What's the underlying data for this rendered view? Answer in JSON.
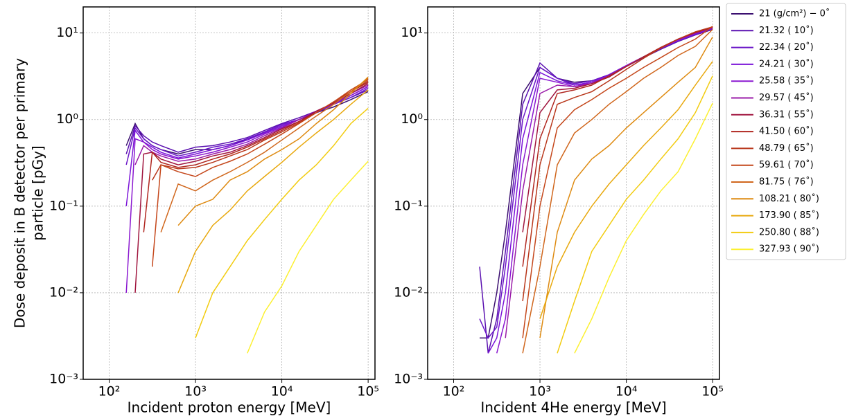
{
  "chart_data": {
    "type": "line",
    "ylabel": [
      "Dose deposit in B detector per primary",
      "particle [pGy]"
    ],
    "xscale": "log",
    "yscale": "log",
    "grid": true,
    "legend": "outside upper right",
    "ylim": [
      0.001,
      20
    ],
    "yticks": [
      {
        "value": 0.001,
        "label": "10⁻³"
      },
      {
        "value": 0.01,
        "label": "10⁻²"
      },
      {
        "value": 0.1,
        "label": "10⁻¹"
      },
      {
        "value": 1,
        "label": "10⁰"
      },
      {
        "value": 10,
        "label": "10¹"
      }
    ],
    "xlim": [
      50,
      120000
    ],
    "xticks": [
      {
        "value": 100,
        "label": "10²"
      },
      {
        "value": 1000,
        "label": "10³"
      },
      {
        "value": 10000,
        "label": "10⁴"
      },
      {
        "value": 100000,
        "label": "10⁵"
      }
    ],
    "series": [
      {
        "name": "21 (g/cm²) − 0˚",
        "color": "#3b0f70"
      },
      {
        "name": "21.32 ( 10˚)",
        "color": "#5a10b0"
      },
      {
        "name": "22.34 ( 20˚)",
        "color": "#6a15c8"
      },
      {
        "name": "24.21 ( 30˚)",
        "color": "#7b14d8"
      },
      {
        "name": "25.58 ( 35˚)",
        "color": "#8a17d0"
      },
      {
        "name": "29.57 ( 45˚)",
        "color": "#9a1aa8"
      },
      {
        "name": "36.31 ( 55˚)",
        "color": "#a0153e"
      },
      {
        "name": "41.50 ( 60˚)",
        "color": "#b0261f"
      },
      {
        "name": "48.79 ( 65˚)",
        "color": "#b8361a"
      },
      {
        "name": "59.61 ( 70˚)",
        "color": "#c4461a"
      },
      {
        "name": "81.75 ( 76˚)",
        "color": "#d0661c"
      },
      {
        "name": "108.21 ( 80˚)",
        "color": "#de8a10"
      },
      {
        "name": "173.90 ( 85˚)",
        "color": "#e8a80c"
      },
      {
        "name": "250.80 ( 88˚)",
        "color": "#f2cc10"
      },
      {
        "name": "327.93 ( 90˚)",
        "color": "#fcf030"
      }
    ],
    "panels": [
      {
        "xlabel": "Incident proton energy [MeV]",
        "x": [
          63,
          100,
          158,
          200,
          251,
          316,
          398,
          631,
          1000,
          1585,
          2512,
          3981,
          6310,
          10000,
          15849,
          25119,
          39811,
          63096,
          100000
        ],
        "series": [
          {
            "values": [
              null,
              null,
              0.5,
              0.9,
              0.6,
              0.5,
              0.45,
              0.4,
              0.45,
              0.45,
              0.5,
              0.6,
              0.7,
              0.85,
              1.0,
              1.2,
              1.4,
              1.7,
              2.1
            ]
          },
          {
            "values": [
              null,
              null,
              0.4,
              0.85,
              0.65,
              0.55,
              0.5,
              0.42,
              0.48,
              0.5,
              0.55,
              0.62,
              0.75,
              0.9,
              1.05,
              1.25,
              1.5,
              1.8,
              2.2
            ]
          },
          {
            "values": [
              null,
              null,
              0.3,
              0.8,
              0.6,
              0.5,
              0.45,
              0.38,
              0.42,
              0.48,
              0.52,
              0.6,
              0.72,
              0.88,
              1.0,
              1.2,
              1.5,
              1.8,
              2.3
            ]
          },
          {
            "values": [
              null,
              null,
              0.1,
              0.75,
              0.55,
              0.48,
              0.42,
              0.36,
              0.4,
              0.45,
              0.5,
              0.58,
              0.7,
              0.85,
              1.0,
              1.25,
              1.5,
              1.9,
              2.4
            ]
          },
          {
            "values": [
              null,
              null,
              0.01,
              0.6,
              0.55,
              0.45,
              0.4,
              0.35,
              0.38,
              0.42,
              0.48,
              0.55,
              0.68,
              0.82,
              1.0,
              1.25,
              1.55,
              1.9,
              2.4
            ]
          },
          {
            "values": [
              null,
              null,
              null,
              0.3,
              0.5,
              0.42,
              0.38,
              0.33,
              0.35,
              0.4,
              0.45,
              0.52,
              0.65,
              0.8,
              1.0,
              1.25,
              1.55,
              2.0,
              2.5
            ]
          },
          {
            "values": [
              null,
              null,
              null,
              0.01,
              0.4,
              0.42,
              0.35,
              0.3,
              0.33,
              0.38,
              0.42,
              0.5,
              0.62,
              0.78,
              0.95,
              1.25,
              1.55,
              2.0,
              2.6
            ]
          },
          {
            "values": [
              null,
              null,
              null,
              null,
              0.05,
              0.42,
              0.32,
              0.28,
              0.3,
              0.35,
              0.4,
              0.48,
              0.6,
              0.75,
              0.95,
              1.2,
              1.6,
              2.1,
              2.7
            ]
          },
          {
            "values": [
              null,
              null,
              null,
              null,
              null,
              0.2,
              0.3,
              0.27,
              0.28,
              0.32,
              0.38,
              0.45,
              0.58,
              0.72,
              0.92,
              1.2,
              1.6,
              2.1,
              2.8
            ]
          },
          {
            "values": [
              null,
              null,
              null,
              null,
              null,
              0.02,
              0.3,
              0.25,
              0.22,
              0.28,
              0.33,
              0.4,
              0.52,
              0.68,
              0.9,
              1.2,
              1.6,
              2.2,
              2.9
            ]
          },
          {
            "values": [
              null,
              null,
              null,
              null,
              null,
              null,
              0.05,
              0.18,
              0.15,
              0.2,
              0.25,
              0.32,
              0.42,
              0.58,
              0.8,
              1.1,
              1.5,
              2.1,
              3.0
            ]
          },
          {
            "values": [
              null,
              null,
              null,
              null,
              null,
              null,
              null,
              0.06,
              0.1,
              0.12,
              0.2,
              0.25,
              0.35,
              0.45,
              0.6,
              0.9,
              1.3,
              2.0,
              3.1
            ]
          },
          {
            "values": [
              null,
              null,
              null,
              null,
              null,
              null,
              null,
              0.01,
              0.03,
              0.06,
              0.09,
              0.15,
              0.22,
              0.32,
              0.48,
              0.7,
              1.0,
              1.5,
              2.2
            ]
          },
          {
            "values": [
              null,
              null,
              null,
              null,
              null,
              null,
              null,
              null,
              0.003,
              0.01,
              0.02,
              0.04,
              0.07,
              0.12,
              0.2,
              0.3,
              0.5,
              0.9,
              1.35
            ]
          },
          {
            "values": [
              null,
              null,
              null,
              null,
              null,
              null,
              null,
              null,
              null,
              null,
              null,
              0.002,
              0.006,
              0.012,
              0.03,
              0.06,
              0.12,
              0.2,
              0.33
            ]
          }
        ]
      },
      {
        "xlabel": "Incident 4He energy [MeV]",
        "x": [
          63,
          100,
          158,
          200,
          251,
          316,
          398,
          631,
          1000,
          1585,
          2512,
          3981,
          6310,
          10000,
          15849,
          25119,
          39811,
          63096,
          100000
        ],
        "series": [
          {
            "values": [
              null,
              null,
              null,
              0.003,
              0.003,
              0.01,
              0.05,
              2,
              4,
              3,
              2.7,
              2.8,
              3.3,
              4.2,
              5.2,
              6.5,
              8,
              9.5,
              11
            ]
          },
          {
            "values": [
              null,
              null,
              null,
              0.02,
              0.002,
              0.005,
              0.03,
              1.5,
              4.5,
              3,
              2.5,
              2.7,
              3.2,
              4.1,
              5.2,
              6.5,
              8,
              9.5,
              11
            ]
          },
          {
            "values": [
              null,
              null,
              null,
              0.005,
              0.003,
              0.004,
              0.02,
              1,
              4,
              3,
              2.6,
              2.8,
              3.3,
              4.2,
              5.3,
              6.6,
              8.1,
              9.6,
              11.2
            ]
          },
          {
            "values": [
              null,
              null,
              null,
              null,
              0.002,
              0.003,
              0.01,
              0.6,
              3.5,
              2.8,
              2.5,
              2.7,
              3.3,
              4.2,
              5.3,
              6.7,
              8.2,
              9.8,
              11.3
            ]
          },
          {
            "values": [
              null,
              null,
              null,
              null,
              null,
              0.002,
              0.005,
              0.3,
              3,
              2.7,
              2.4,
              2.7,
              3.2,
              4.2,
              5.3,
              6.7,
              8.3,
              9.9,
              11.4
            ]
          },
          {
            "values": [
              null,
              null,
              null,
              null,
              null,
              null,
              0.003,
              0.15,
              2,
              2.5,
              2.4,
              2.6,
              3.2,
              4.1,
              5.3,
              6.8,
              8.4,
              10,
              11.5
            ]
          },
          {
            "values": [
              null,
              null,
              null,
              0.002,
              null,
              null,
              null,
              0.05,
              1.2,
              2.2,
              2.3,
              2.6,
              3.1,
              4.1,
              5.3,
              6.8,
              8.5,
              10.1,
              11.6
            ]
          },
          {
            "values": [
              null,
              null,
              null,
              null,
              null,
              null,
              null,
              0.02,
              0.6,
              2,
              2.2,
              2.5,
              3.2,
              4.1,
              5.3,
              6.8,
              8.5,
              10.2,
              11.7
            ]
          },
          {
            "values": [
              null,
              null,
              null,
              null,
              null,
              null,
              null,
              0.008,
              0.3,
              1.5,
              1.8,
              2.1,
              2.8,
              3.8,
              5.1,
              6.7,
              8.5,
              10.3,
              11.8
            ]
          },
          {
            "values": [
              null,
              null,
              null,
              null,
              null,
              null,
              null,
              0.003,
              0.1,
              0.8,
              1.3,
              1.7,
              2.3,
              3.0,
              4.0,
              5.2,
              6.8,
              8.5,
              12
            ]
          },
          {
            "values": [
              null,
              null,
              null,
              null,
              null,
              null,
              null,
              0.002,
              0.02,
              0.3,
              0.7,
              1.0,
              1.5,
              2.1,
              3,
              4,
              5.5,
              7,
              11
            ]
          },
          {
            "values": [
              null,
              null,
              null,
              null,
              null,
              null,
              null,
              null,
              0.003,
              0.05,
              0.2,
              0.35,
              0.5,
              0.8,
              1.2,
              1.8,
              2.7,
              4,
              9
            ]
          },
          {
            "values": [
              null,
              null,
              null,
              null,
              null,
              null,
              null,
              null,
              0.005,
              0.02,
              0.05,
              0.1,
              0.18,
              0.3,
              0.5,
              0.8,
              1.3,
              2.5,
              4.7
            ]
          },
          {
            "values": [
              null,
              null,
              null,
              null,
              null,
              null,
              null,
              null,
              null,
              0.002,
              0.008,
              0.03,
              0.06,
              0.12,
              0.2,
              0.35,
              0.6,
              1.2,
              3.2
            ]
          },
          {
            "values": [
              null,
              null,
              null,
              null,
              null,
              null,
              null,
              null,
              null,
              null,
              0.002,
              0.005,
              0.015,
              0.04,
              0.08,
              0.15,
              0.25,
              0.6,
              1.55
            ]
          }
        ]
      }
    ]
  }
}
